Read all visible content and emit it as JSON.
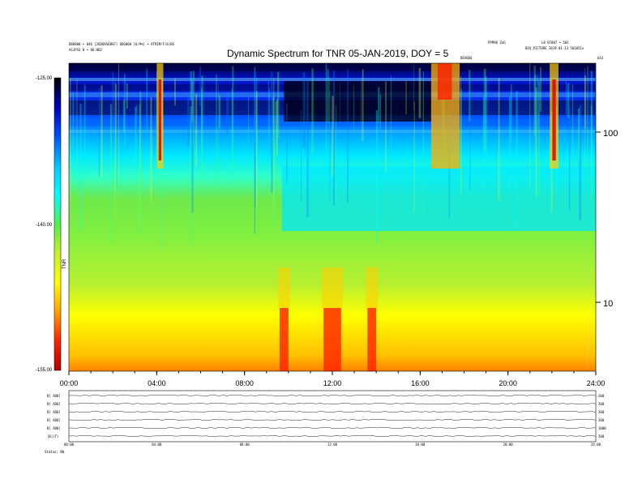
{
  "header": {
    "left_line1": "DB8800 • 846 [26D6RSOBSF] 6D6060 [6/9%] • ATRIM/F(6)BS",
    "left_line2": "ASJPSS 0 • 86:0B2",
    "mid_right": "PPM96 ZaG",
    "right_line1": "L8 B7007 • 501",
    "right_line2": "BIQ_PICTURE 2019-01-13 50105Ix",
    "mid_marker": "DEV066",
    "right_marker": "643"
  },
  "chart_data": {
    "type": "heatmap",
    "title": "Dynamic Spectrum for TNR 05-JAN-2019, DOY = 5",
    "x_ticks": [
      "00:00",
      "04:00",
      "08:00",
      "12:00",
      "16:00",
      "20:00",
      "24:00"
    ],
    "x_range_hours": [
      0,
      24
    ],
    "y_scale": "log",
    "y_ticks": [
      "100",
      "10"
    ],
    "colorbar": {
      "label": "TNR",
      "ticks": [
        "-125.00",
        "-140.00",
        "-155.00"
      ],
      "range": [
        -155,
        -125
      ],
      "colors": [
        "#000000",
        "#0000c0",
        "#0050ff",
        "#00c8ff",
        "#00ffff",
        "#50f050",
        "#c8f028",
        "#ffff00",
        "#ffa000",
        "#ff2000",
        "#b00000"
      ]
    },
    "bands": [
      {
        "name": "background-low",
        "color": "#ffff00"
      },
      {
        "name": "background-mid",
        "color": "#6ee84a"
      },
      {
        "name": "background-cyan",
        "color": "#00eaff"
      },
      {
        "name": "background-high",
        "color": "#0030e0"
      }
    ],
    "events": [
      {
        "name": "type-III-burst-1",
        "start_h": 4.0,
        "end_h": 4.3
      },
      {
        "name": "burst-cluster",
        "start_h": 16.5,
        "end_h": 17.8
      },
      {
        "name": "type-III-burst-2",
        "start_h": 21.9,
        "end_h": 22.3
      },
      {
        "name": "low-freq-burst-1",
        "start_h": 9.6,
        "end_h": 10.0
      },
      {
        "name": "low-freq-burst-2",
        "start_h": 11.6,
        "end_h": 12.4
      },
      {
        "name": "low-freq-burst-3",
        "start_h": 13.6,
        "end_h": 14.0
      }
    ]
  },
  "bottom_panel": {
    "row_labels": [
      "B[ AD0]",
      "B[ AD0]",
      "B[ AD0]",
      "B[ AD0]",
      "B[ AD0]",
      "|B|(T)"
    ],
    "right_labels": [
      "200",
      "200",
      "200",
      "200",
      "1000",
      "200"
    ],
    "time_labels": [
      "00:00",
      "04:00",
      "08:00",
      "12:00",
      "16:00",
      "20:00",
      "24:00"
    ],
    "footer": "Status: 8W"
  }
}
